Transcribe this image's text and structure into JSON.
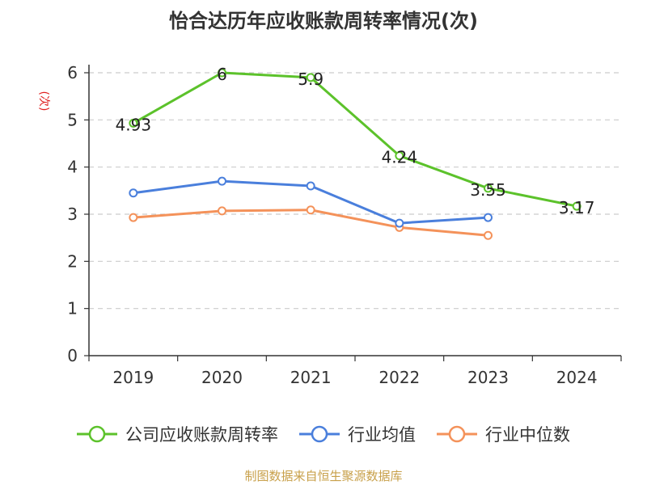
{
  "chart_data": {
    "type": "line",
    "title": "怡合达历年应收账款周转率情况(次)",
    "ylabel": "(次)",
    "xlabel": "",
    "categories": [
      "2019",
      "2020",
      "2021",
      "2022",
      "2023",
      "2024"
    ],
    "ylim": [
      0,
      6
    ],
    "yticks": [
      0,
      1,
      2,
      3,
      4,
      5,
      6
    ],
    "grid": true,
    "legend_position": "bottom",
    "series": [
      {
        "name": "公司应收账款周转率",
        "color": "#5cc22b",
        "values": [
          4.93,
          6,
          5.9,
          4.24,
          3.55,
          3.17
        ],
        "labels": [
          "4.93",
          "6",
          "5.9",
          "4.24",
          "3.55",
          "3.17"
        ],
        "show_labels": true
      },
      {
        "name": "行业均值",
        "color": "#4a7fdc",
        "values": [
          3.45,
          3.7,
          3.6,
          2.81,
          2.93,
          null
        ],
        "show_labels": false
      },
      {
        "name": "行业中位数",
        "color": "#f4925a",
        "values": [
          2.93,
          3.07,
          3.09,
          2.72,
          2.55,
          null
        ],
        "show_labels": false
      }
    ],
    "source": "制图数据来自恒生聚源数据库"
  }
}
